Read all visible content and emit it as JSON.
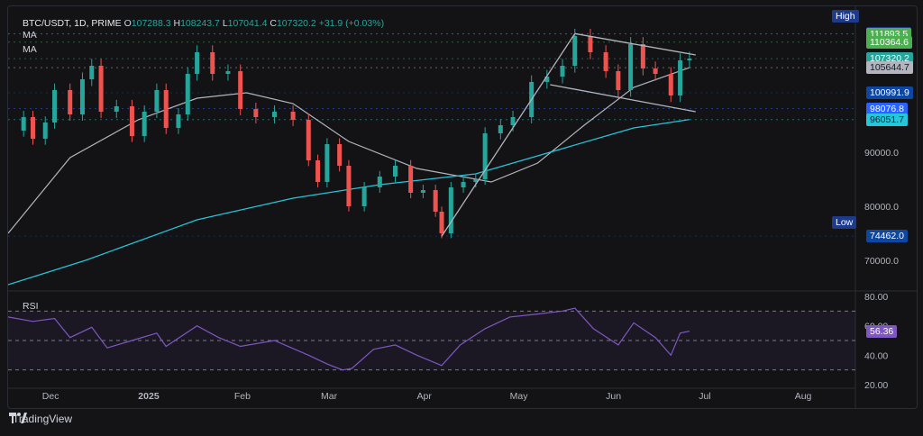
{
  "legend": {
    "symbol": "BTC/USDT, 1D, PRIME",
    "open_label": "O",
    "open": "107288.3",
    "high_label": "H",
    "high": "108243.7",
    "low_label": "L",
    "low": "107041.4",
    "close_label": "C",
    "close": "107320.2",
    "change": "+31.9 (+0.03%)"
  },
  "ma_labels": [
    "MA",
    "MA"
  ],
  "rsi_label": "RSI",
  "high_tag": "High",
  "low_tag": "Low",
  "brand": "TradingView",
  "chart_data": {
    "type": "candlestick",
    "symbol": "BTC/USDT",
    "interval": "1D",
    "x_ticks": [
      "Dec",
      "2025",
      "Feb",
      "Mar",
      "Apr",
      "May",
      "Jun",
      "Jul",
      "Aug"
    ],
    "y_ticks": [
      "90000.0",
      "80000.0",
      "70000.0"
    ],
    "ylim": [
      65000,
      113000
    ],
    "price_levels": [
      {
        "label": "111950.0",
        "value": 111950,
        "color": "#1e3a8a",
        "text_color": "#ffffff"
      },
      {
        "label": "111893.5",
        "value": 111893.5,
        "color": "#4caf50",
        "text_color": "#ffffff"
      },
      {
        "label": "110364.6",
        "value": 110364.6,
        "color": "#4caf50",
        "text_color": "#ffffff"
      },
      {
        "label": "107320.2",
        "value": 107320.2,
        "color": "#26a69a",
        "text_color": "#ffffff"
      },
      {
        "label": "105644.7",
        "value": 105644.7,
        "color": "#b2b5be",
        "text_color": "#131722"
      },
      {
        "label": "100991.9",
        "value": 100991.9,
        "color": "#0d47a1",
        "text_color": "#ffffff"
      },
      {
        "label": "98076.8",
        "value": 98076.8,
        "color": "#2962ff",
        "text_color": "#ffffff"
      },
      {
        "label": "96051.7",
        "value": 96051.7,
        "color": "#26c6da",
        "text_color": "#131722"
      },
      {
        "label": "74462.0",
        "value": 74462,
        "color": "#0d47a1",
        "text_color": "#ffffff"
      }
    ],
    "high_value": "111950.0",
    "low_value": "74462.0",
    "close_series": [
      {
        "x": "2024-11-20",
        "y": 94000
      },
      {
        "x": "2024-11-25",
        "y": 96500
      },
      {
        "x": "2024-11-28",
        "y": 92500
      },
      {
        "x": "2024-12-02",
        "y": 95500
      },
      {
        "x": "2024-12-05",
        "y": 101500
      },
      {
        "x": "2024-12-10",
        "y": 97000
      },
      {
        "x": "2024-12-14",
        "y": 103500
      },
      {
        "x": "2024-12-17",
        "y": 106000
      },
      {
        "x": "2024-12-20",
        "y": 97500
      },
      {
        "x": "2024-12-25",
        "y": 98500
      },
      {
        "x": "2024-12-30",
        "y": 93000
      },
      {
        "x": "2025-01-03",
        "y": 97500
      },
      {
        "x": "2025-01-07",
        "y": 101500
      },
      {
        "x": "2025-01-10",
        "y": 94500
      },
      {
        "x": "2025-01-14",
        "y": 97000
      },
      {
        "x": "2025-01-17",
        "y": 104500
      },
      {
        "x": "2025-01-20",
        "y": 108500
      },
      {
        "x": "2025-01-25",
        "y": 104500
      },
      {
        "x": "2025-01-30",
        "y": 105000
      },
      {
        "x": "2025-02-03",
        "y": 98000
      },
      {
        "x": "2025-02-08",
        "y": 96500
      },
      {
        "x": "2025-02-14",
        "y": 97500
      },
      {
        "x": "2025-02-20",
        "y": 96000
      },
      {
        "x": "2025-02-25",
        "y": 88500
      },
      {
        "x": "2025-02-28",
        "y": 84500
      },
      {
        "x": "2025-03-03",
        "y": 91500
      },
      {
        "x": "2025-03-07",
        "y": 87500
      },
      {
        "x": "2025-03-10",
        "y": 80000
      },
      {
        "x": "2025-03-15",
        "y": 83500
      },
      {
        "x": "2025-03-20",
        "y": 85500
      },
      {
        "x": "2025-03-25",
        "y": 87500
      },
      {
        "x": "2025-03-30",
        "y": 82500
      },
      {
        "x": "2025-04-03",
        "y": 83000
      },
      {
        "x": "2025-04-07",
        "y": 79000
      },
      {
        "x": "2025-04-09",
        "y": 75000
      },
      {
        "x": "2025-04-12",
        "y": 83500
      },
      {
        "x": "2025-04-16",
        "y": 84500
      },
      {
        "x": "2025-04-20",
        "y": 85000
      },
      {
        "x": "2025-04-23",
        "y": 93500
      },
      {
        "x": "2025-04-28",
        "y": 95000
      },
      {
        "x": "2025-05-02",
        "y": 96500
      },
      {
        "x": "2025-05-08",
        "y": 103000
      },
      {
        "x": "2025-05-13",
        "y": 104000
      },
      {
        "x": "2025-05-18",
        "y": 106000
      },
      {
        "x": "2025-05-22",
        "y": 111500
      },
      {
        "x": "2025-05-27",
        "y": 108500
      },
      {
        "x": "2025-06-01",
        "y": 105000
      },
      {
        "x": "2025-06-05",
        "y": 101500
      },
      {
        "x": "2025-06-09",
        "y": 110000
      },
      {
        "x": "2025-06-13",
        "y": 105500
      },
      {
        "x": "2025-06-17",
        "y": 104500
      },
      {
        "x": "2025-06-22",
        "y": 100500
      },
      {
        "x": "2025-06-25",
        "y": 107000
      },
      {
        "x": "2025-06-28",
        "y": 107320
      }
    ],
    "ma_series": [
      {
        "name": "",
        "color": "#b2b5be",
        "points": [
          {
            "x": "2024-11-20",
            "y": 75000
          },
          {
            "x": "2024-12-10",
            "y": 89000
          },
          {
            "x": "2025-01-01",
            "y": 96000
          },
          {
            "x": "2025-01-20",
            "y": 100000
          },
          {
            "x": "2025-02-05",
            "y": 101000
          },
          {
            "x": "2025-02-20",
            "y": 99000
          },
          {
            "x": "2025-03-10",
            "y": 92000
          },
          {
            "x": "2025-04-01",
            "y": 87000
          },
          {
            "x": "2025-04-25",
            "y": 84500
          },
          {
            "x": "2025-05-10",
            "y": 88000
          },
          {
            "x": "2025-05-25",
            "y": 95000
          },
          {
            "x": "2025-06-10",
            "y": 102000
          },
          {
            "x": "2025-06-28",
            "y": 105645
          }
        ]
      },
      {
        "name": "",
        "color": "#26c6da",
        "points": [
          {
            "x": "2024-11-20",
            "y": 65500
          },
          {
            "x": "2024-12-15",
            "y": 70000
          },
          {
            "x": "2025-01-20",
            "y": 77500
          },
          {
            "x": "2025-02-20",
            "y": 81500
          },
          {
            "x": "2025-03-20",
            "y": 84000
          },
          {
            "x": "2025-04-20",
            "y": 86000
          },
          {
            "x": "2025-05-20",
            "y": 91000
          },
          {
            "x": "2025-06-10",
            "y": 94500
          },
          {
            "x": "2025-06-28",
            "y": 96052
          }
        ]
      }
    ],
    "trendlines": [
      {
        "from": {
          "x": "2025-04-09",
          "y": 74462
        },
        "to": {
          "x": "2025-05-22",
          "y": 111950
        }
      },
      {
        "from": {
          "x": "2025-05-22",
          "y": 111950
        },
        "to": {
          "x": "2025-06-30",
          "y": 108000
        }
      },
      {
        "from": {
          "x": "2025-05-14",
          "y": 102500
        },
        "to": {
          "x": "2025-06-30",
          "y": 97500
        }
      }
    ],
    "rsi": {
      "y_ticks": [
        "80.00",
        "60.00",
        "40.00",
        "20.00"
      ],
      "ylim": [
        20,
        80
      ],
      "bands": [
        70,
        50,
        30
      ],
      "current": "56.36",
      "values": [
        {
          "x": "2024-11-20",
          "y": 66
        },
        {
          "x": "2024-11-28",
          "y": 63
        },
        {
          "x": "2024-12-05",
          "y": 65
        },
        {
          "x": "2024-12-10",
          "y": 52
        },
        {
          "x": "2024-12-17",
          "y": 59
        },
        {
          "x": "2024-12-22",
          "y": 45
        },
        {
          "x": "2024-12-30",
          "y": 50
        },
        {
          "x": "2025-01-07",
          "y": 55
        },
        {
          "x": "2025-01-10",
          "y": 46
        },
        {
          "x": "2025-01-20",
          "y": 60
        },
        {
          "x": "2025-01-27",
          "y": 52
        },
        {
          "x": "2025-02-03",
          "y": 46
        },
        {
          "x": "2025-02-14",
          "y": 50
        },
        {
          "x": "2025-02-25",
          "y": 40
        },
        {
          "x": "2025-03-03",
          "y": 34
        },
        {
          "x": "2025-03-08",
          "y": 30
        },
        {
          "x": "2025-03-11",
          "y": 31
        },
        {
          "x": "2025-03-18",
          "y": 44
        },
        {
          "x": "2025-03-25",
          "y": 47
        },
        {
          "x": "2025-04-01",
          "y": 40
        },
        {
          "x": "2025-04-09",
          "y": 33
        },
        {
          "x": "2025-04-15",
          "y": 47
        },
        {
          "x": "2025-04-23",
          "y": 58
        },
        {
          "x": "2025-05-01",
          "y": 66
        },
        {
          "x": "2025-05-10",
          "y": 68
        },
        {
          "x": "2025-05-18",
          "y": 70
        },
        {
          "x": "2025-05-22",
          "y": 72
        },
        {
          "x": "2025-05-28",
          "y": 58
        },
        {
          "x": "2025-06-05",
          "y": 47
        },
        {
          "x": "2025-06-10",
          "y": 62
        },
        {
          "x": "2025-06-17",
          "y": 52
        },
        {
          "x": "2025-06-22",
          "y": 40
        },
        {
          "x": "2025-06-25",
          "y": 55
        },
        {
          "x": "2025-06-28",
          "y": 56.36
        }
      ]
    }
  }
}
